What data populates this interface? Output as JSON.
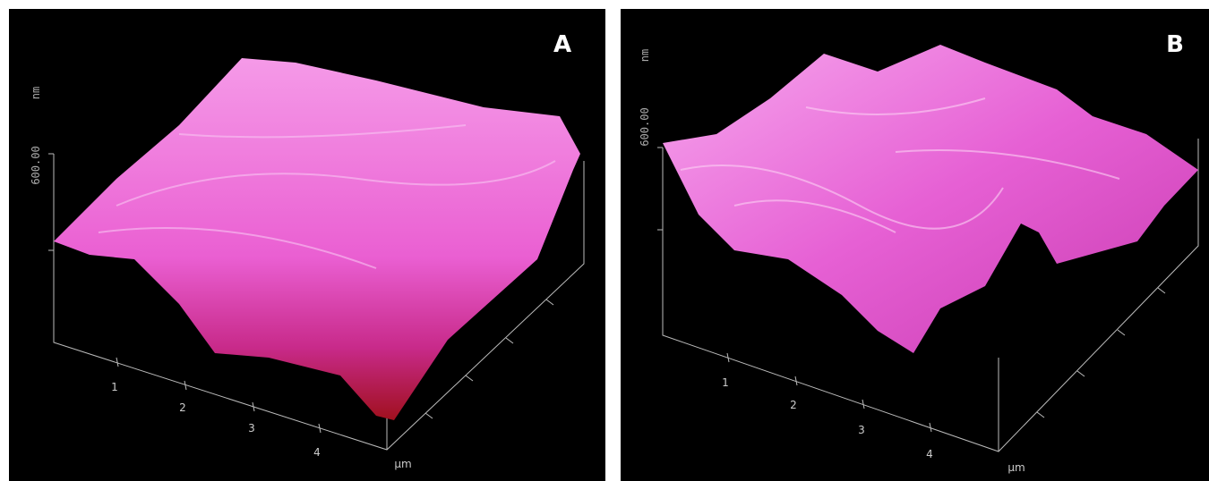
{
  "panels": [
    {
      "label": "A",
      "z_unit": "nm",
      "z_tick": "600.00",
      "x_ticks": [
        "1",
        "2",
        "3",
        "4"
      ],
      "x_unit": "µm"
    },
    {
      "label": "B",
      "z_unit": "nm",
      "z_tick": "600.00",
      "x_ticks": [
        "1",
        "2",
        "3",
        "4"
      ],
      "x_unit": "µm"
    }
  ]
}
